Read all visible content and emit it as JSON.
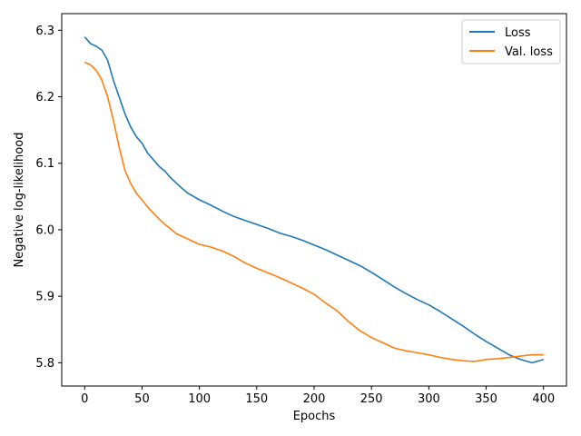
{
  "chart_data": {
    "type": "line",
    "title": "",
    "xlabel": "Epochs",
    "ylabel": "Negative log-likelihood",
    "xlim": [
      -20,
      420
    ],
    "ylim": [
      5.765,
      6.325
    ],
    "xticks": [
      0,
      50,
      100,
      150,
      200,
      250,
      300,
      350,
      400
    ],
    "yticks": [
      5.8,
      5.9,
      6.0,
      6.1,
      6.2,
      6.3
    ],
    "grid": false,
    "legend": "top-right",
    "series": [
      {
        "name": "Loss",
        "color": "#1f77b4",
        "x": [
          0,
          5,
          10,
          15,
          20,
          25,
          30,
          35,
          40,
          45,
          50,
          55,
          60,
          65,
          70,
          75,
          80,
          85,
          90,
          95,
          100,
          110,
          120,
          130,
          140,
          150,
          160,
          170,
          180,
          190,
          200,
          210,
          220,
          230,
          240,
          250,
          260,
          270,
          280,
          290,
          300,
          310,
          320,
          330,
          340,
          350,
          360,
          370,
          380,
          390,
          400
        ],
        "y": [
          6.29,
          6.28,
          6.276,
          6.27,
          6.255,
          6.225,
          6.2,
          6.175,
          6.155,
          6.14,
          6.13,
          6.115,
          6.105,
          6.095,
          6.088,
          6.078,
          6.07,
          6.062,
          6.055,
          6.05,
          6.045,
          6.037,
          6.028,
          6.02,
          6.014,
          6.008,
          6.002,
          5.995,
          5.99,
          5.984,
          5.977,
          5.97,
          5.962,
          5.954,
          5.946,
          5.936,
          5.925,
          5.914,
          5.904,
          5.895,
          5.887,
          5.877,
          5.866,
          5.855,
          5.843,
          5.832,
          5.822,
          5.812,
          5.805,
          5.8,
          5.805
        ]
      },
      {
        "name": "Val. loss",
        "color": "#ff7f0e",
        "x": [
          0,
          5,
          10,
          15,
          20,
          25,
          30,
          35,
          40,
          45,
          50,
          55,
          60,
          65,
          70,
          75,
          80,
          85,
          90,
          95,
          100,
          110,
          120,
          130,
          140,
          150,
          160,
          170,
          180,
          190,
          200,
          210,
          220,
          230,
          240,
          250,
          260,
          270,
          280,
          290,
          300,
          310,
          320,
          330,
          340,
          350,
          360,
          370,
          380,
          390,
          400
        ],
        "y": [
          6.252,
          6.248,
          6.24,
          6.225,
          6.2,
          6.165,
          6.125,
          6.09,
          6.07,
          6.055,
          6.045,
          6.034,
          6.025,
          6.016,
          6.008,
          6.001,
          5.994,
          5.99,
          5.986,
          5.982,
          5.978,
          5.974,
          5.968,
          5.96,
          5.95,
          5.942,
          5.935,
          5.928,
          5.92,
          5.912,
          5.903,
          5.89,
          5.878,
          5.862,
          5.848,
          5.838,
          5.83,
          5.822,
          5.818,
          5.815,
          5.812,
          5.808,
          5.805,
          5.803,
          5.802,
          5.805,
          5.806,
          5.808,
          5.81,
          5.812,
          5.812
        ]
      }
    ]
  }
}
